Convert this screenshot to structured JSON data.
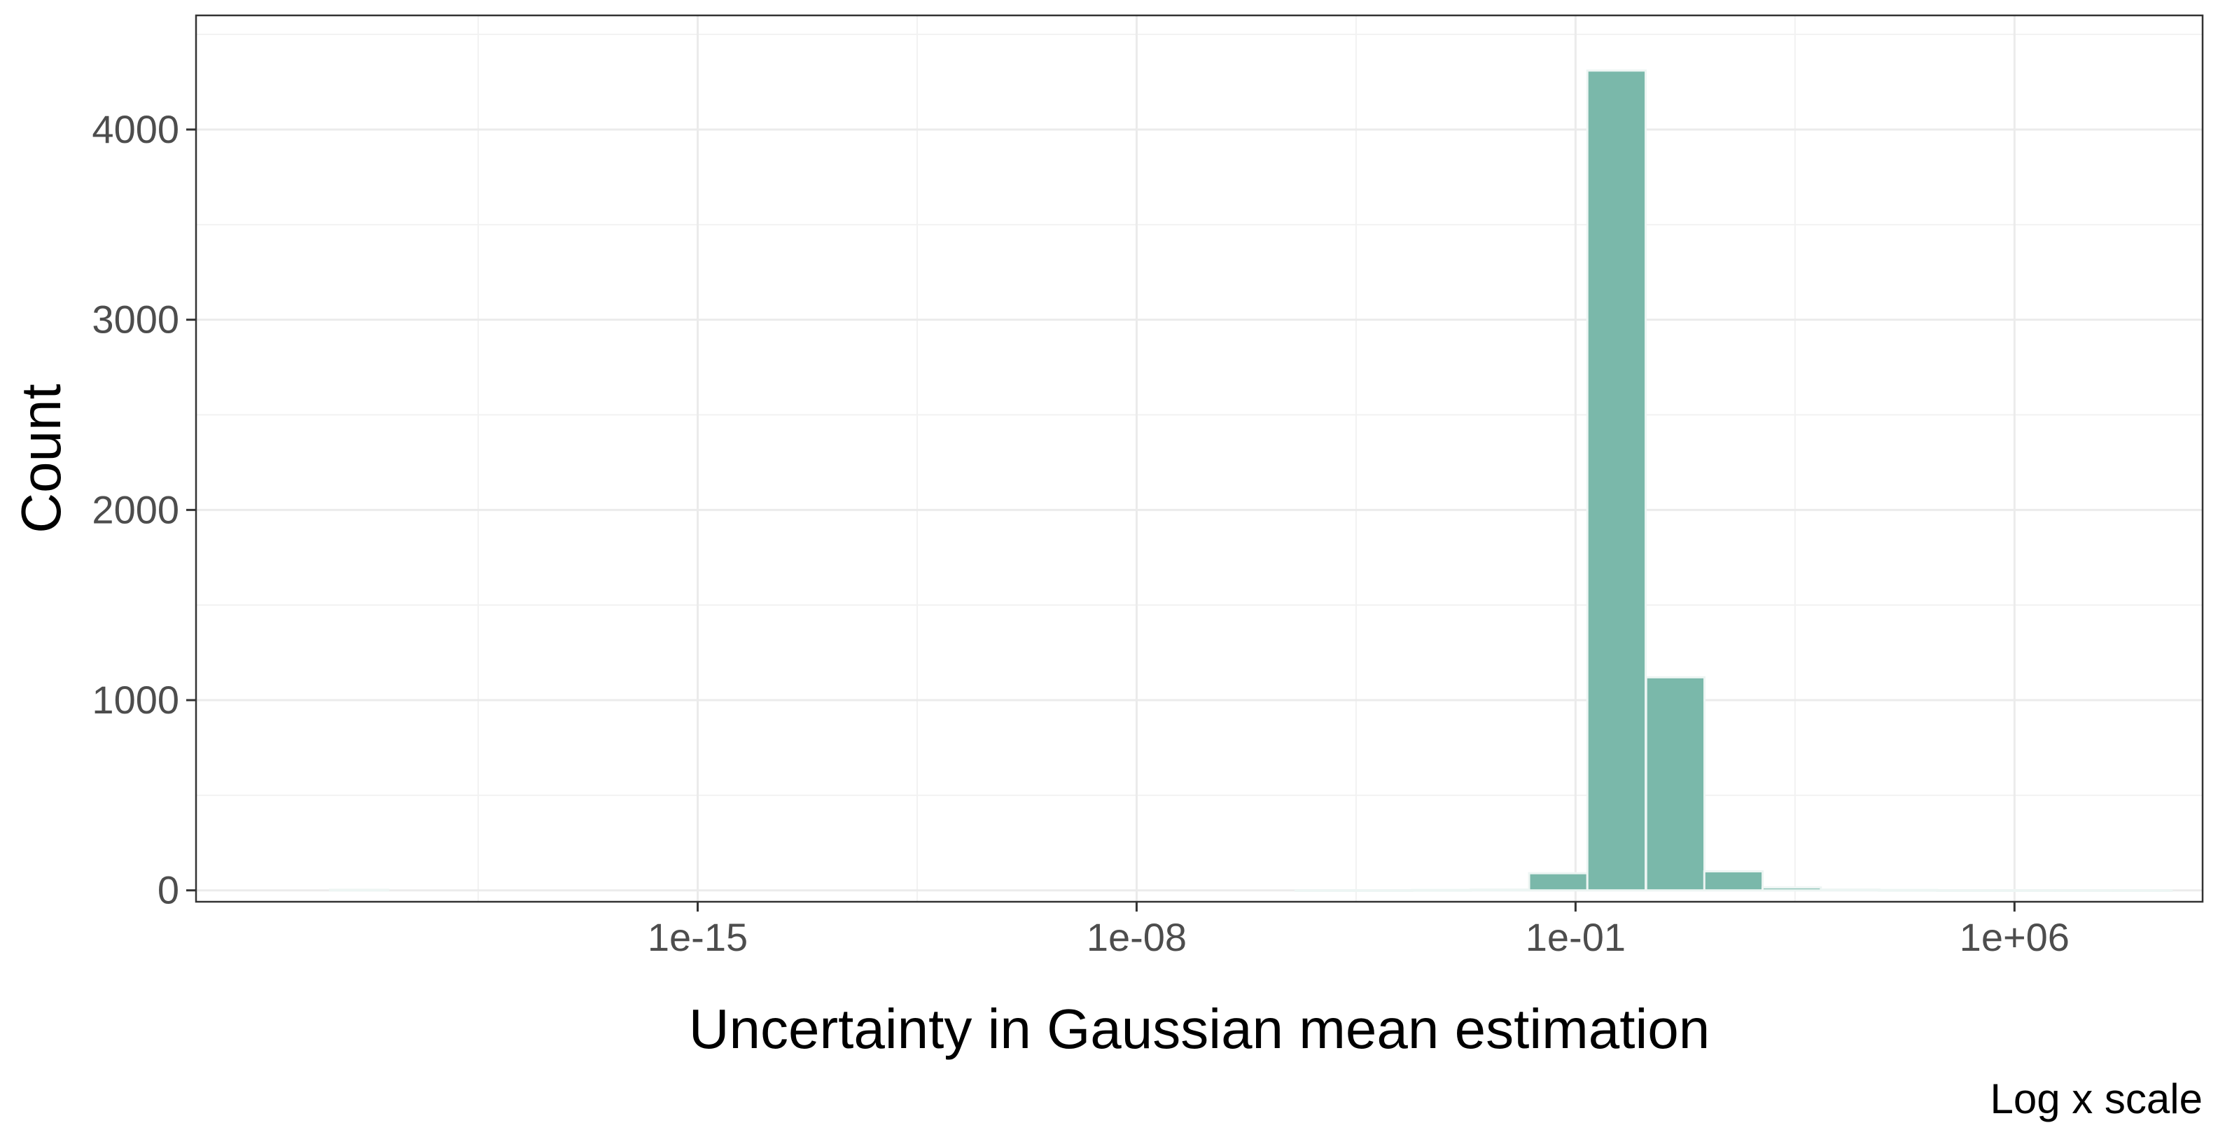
{
  "chart_data": {
    "type": "bar",
    "xlabel": "Uncertainty in Gaussian mean estimation",
    "ylabel": "Count",
    "caption": "Log x scale",
    "x_scale": "log10",
    "x_range": [
      1e-23,
      1000000000.0
    ],
    "y_range": [
      -60,
      4600
    ],
    "x_ticks": [
      {
        "value": 1e-15,
        "label": "1e-15"
      },
      {
        "value": 1e-08,
        "label": "1e-08"
      },
      {
        "value": 0.1,
        "label": "1e-01"
      },
      {
        "value": 1000000.0,
        "label": "1e+06"
      }
    ],
    "y_ticks": [
      {
        "value": 0,
        "label": "0"
      },
      {
        "value": 1000,
        "label": "1000"
      },
      {
        "value": 2000,
        "label": "2000"
      },
      {
        "value": 3000,
        "label": "3000"
      },
      {
        "value": 4000,
        "label": "4000"
      }
    ],
    "bin_width_log10": 0.93,
    "bins": [
      {
        "center": 4e-21,
        "count": 3
      },
      {
        "center": 1e-05,
        "count": 1
      },
      {
        "center": 8.5e-05,
        "count": 1
      },
      {
        "center": 0.00073,
        "count": 2
      },
      {
        "center": 0.0062,
        "count": 4
      },
      {
        "center": 0.053,
        "count": 90
      },
      {
        "center": 0.45,
        "count": 4310
      },
      {
        "center": 3.9,
        "count": 1120
      },
      {
        "center": 33.0,
        "count": 100
      },
      {
        "center": 280.0,
        "count": 15
      },
      {
        "center": 2400.0,
        "count": 4
      },
      {
        "center": 20000.0,
        "count": 2
      },
      {
        "center": 170000.0,
        "count": 1
      },
      {
        "center": 1500000.0,
        "count": 1
      },
      {
        "center": 13000000.0,
        "count": 1
      },
      {
        "center": 110000000.0,
        "count": 1
      }
    ],
    "grid": true,
    "bar_fill": "#7ab8aa",
    "bar_outline": "#edf5f3",
    "panel_border": "#333333",
    "grid_major_color": "#ebebeb",
    "grid_minor_color": "#f2f2f2"
  }
}
